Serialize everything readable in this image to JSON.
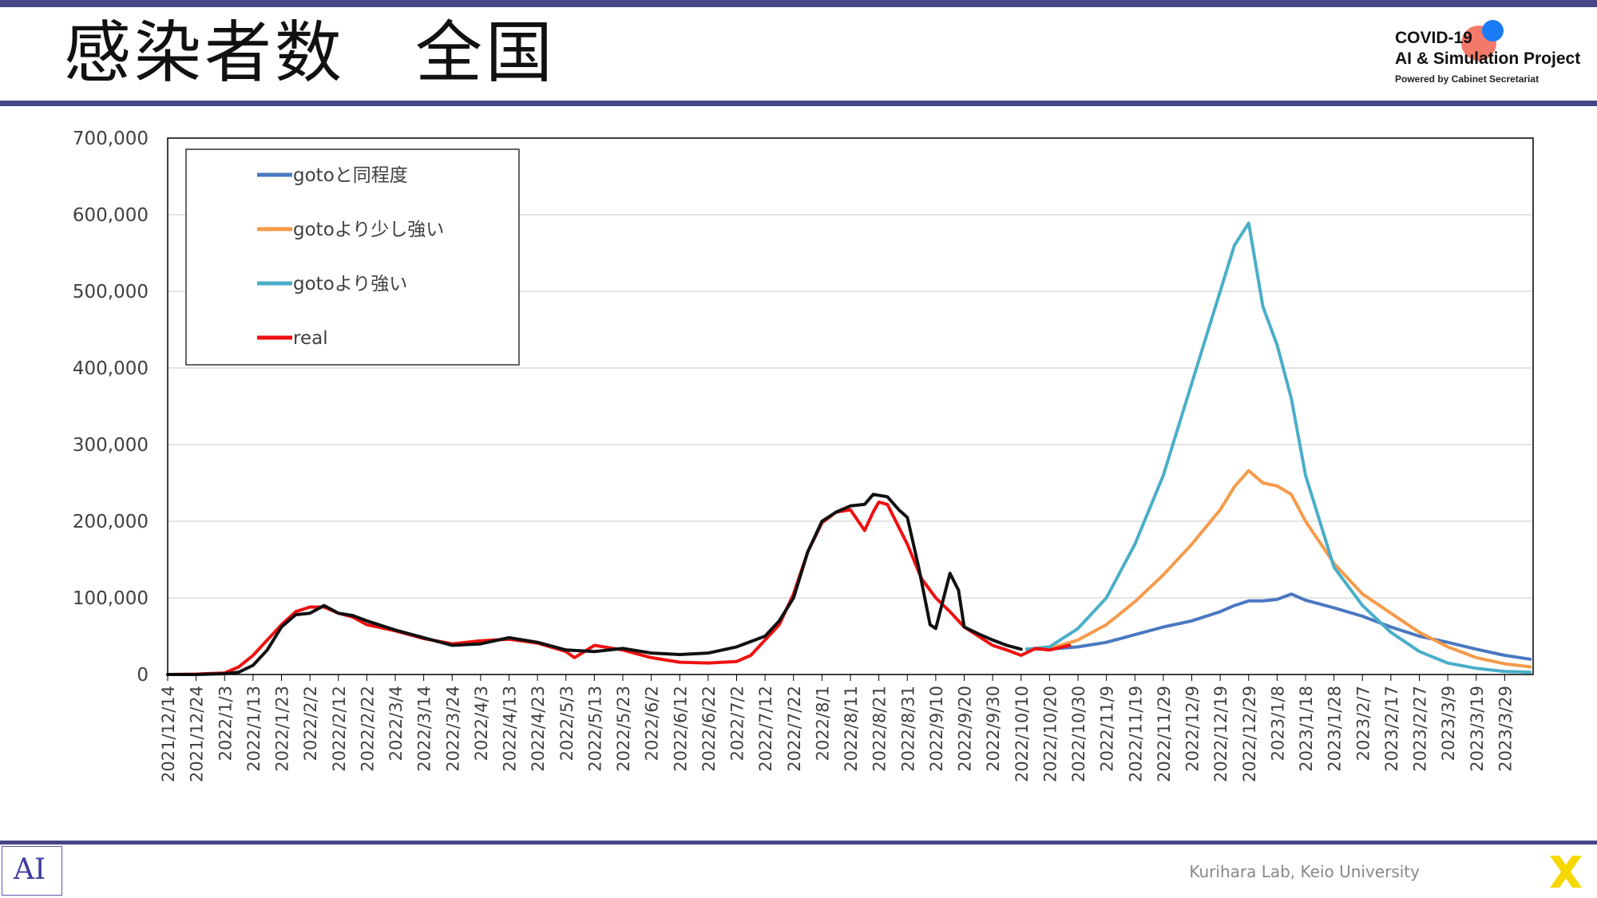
{
  "slide": {
    "title": "感染者数　全国",
    "logo_line1": "COVID-19",
    "logo_line2": "AI & Simulation Project",
    "logo_line3": "Powered by Cabinet Secretariat",
    "lab_logo_text": "AI",
    "credit": "Kurihara Lab, Keio University"
  },
  "colors": {
    "bar": "#474787",
    "same_goto": "#4a78c0",
    "slightly_stronger": "#f59a4a",
    "stronger": "#4aaec9",
    "real": "#ee1111",
    "black": "#111111",
    "brand_x": "#f5d800"
  },
  "chart_data": {
    "type": "line",
    "title": "",
    "xlabel": "",
    "ylabel": "",
    "ylim": [
      0,
      700000
    ],
    "y_ticks": [
      "0",
      "100,000",
      "200,000",
      "300,000",
      "400,000",
      "500,000",
      "600,000",
      "700,000"
    ],
    "x_ticks": [
      "2021/12/14",
      "2021/12/24",
      "2022/1/3",
      "2022/1/13",
      "2022/1/23",
      "2022/2/2",
      "2022/2/12",
      "2022/2/22",
      "2022/3/4",
      "2022/3/14",
      "2022/3/24",
      "2022/4/3",
      "2022/4/13",
      "2022/4/23",
      "2022/5/3",
      "2022/5/13",
      "2022/5/23",
      "2022/6/2",
      "2022/6/12",
      "2022/6/22",
      "2022/7/2",
      "2022/7/12",
      "2022/7/22",
      "2022/8/1",
      "2022/8/11",
      "2022/8/21",
      "2022/8/31",
      "2022/9/10",
      "2022/9/20",
      "2022/9/30",
      "2022/10/10",
      "2022/10/20",
      "2022/10/30",
      "2022/11/9",
      "2022/11/19",
      "2022/11/29",
      "2022/12/9",
      "2022/12/19",
      "2022/12/29",
      "2023/1/8",
      "2023/1/18",
      "2023/1/28",
      "2023/2/7",
      "2023/2/17",
      "2023/2/27",
      "2023/3/9",
      "2023/3/19",
      "2023/3/29"
    ],
    "legend_position": "top-left",
    "grid": true,
    "series": [
      {
        "name": "gotoと同程度",
        "color": "#4a78c0",
        "points": [
          [
            "2022/10/12",
            33000
          ],
          [
            "2022/10/20",
            33000
          ],
          [
            "2022/10/30",
            36000
          ],
          [
            "2022/11/9",
            42000
          ],
          [
            "2022/11/19",
            52000
          ],
          [
            "2022/11/29",
            62000
          ],
          [
            "2022/12/9",
            70000
          ],
          [
            "2022/12/19",
            82000
          ],
          [
            "2022/12/24",
            90000
          ],
          [
            "2022/12/29",
            96000
          ],
          [
            "2023/1/3",
            96000
          ],
          [
            "2023/1/8",
            98000
          ],
          [
            "2023/1/13",
            105000
          ],
          [
            "2023/1/18",
            97000
          ],
          [
            "2023/1/28",
            87000
          ],
          [
            "2023/2/7",
            76000
          ],
          [
            "2023/2/17",
            62000
          ],
          [
            "2023/2/27",
            50000
          ],
          [
            "2023/3/9",
            42000
          ],
          [
            "2023/3/19",
            33000
          ],
          [
            "2023/3/29",
            25000
          ],
          [
            "2023/4/7",
            20000
          ]
        ]
      },
      {
        "name": "gotoより少し強い",
        "color": "#f59a4a",
        "points": [
          [
            "2022/10/12",
            33000
          ],
          [
            "2022/10/20",
            34000
          ],
          [
            "2022/10/30",
            45000
          ],
          [
            "2022/11/9",
            65000
          ],
          [
            "2022/11/19",
            95000
          ],
          [
            "2022/11/29",
            130000
          ],
          [
            "2022/12/9",
            170000
          ],
          [
            "2022/12/19",
            215000
          ],
          [
            "2022/12/24",
            245000
          ],
          [
            "2022/12/29",
            266000
          ],
          [
            "2023/1/3",
            250000
          ],
          [
            "2023/1/8",
            246000
          ],
          [
            "2023/1/13",
            235000
          ],
          [
            "2023/1/18",
            200000
          ],
          [
            "2023/1/28",
            145000
          ],
          [
            "2023/2/7",
            105000
          ],
          [
            "2023/2/17",
            80000
          ],
          [
            "2023/2/27",
            55000
          ],
          [
            "2023/3/9",
            36000
          ],
          [
            "2023/3/19",
            22000
          ],
          [
            "2023/3/29",
            14000
          ],
          [
            "2023/4/7",
            10000
          ]
        ]
      },
      {
        "name": "gotoより強い",
        "color": "#4aaec9",
        "points": [
          [
            "2022/10/12",
            33000
          ],
          [
            "2022/10/20",
            36000
          ],
          [
            "2022/10/30",
            60000
          ],
          [
            "2022/11/9",
            100000
          ],
          [
            "2022/11/19",
            170000
          ],
          [
            "2022/11/29",
            260000
          ],
          [
            "2022/12/9",
            380000
          ],
          [
            "2022/12/19",
            500000
          ],
          [
            "2022/12/24",
            560000
          ],
          [
            "2022/12/29",
            589000
          ],
          [
            "2023/1/3",
            480000
          ],
          [
            "2023/1/8",
            430000
          ],
          [
            "2023/1/13",
            360000
          ],
          [
            "2023/1/18",
            260000
          ],
          [
            "2023/1/28",
            140000
          ],
          [
            "2023/2/7",
            90000
          ],
          [
            "2023/2/17",
            55000
          ],
          [
            "2023/2/27",
            30000
          ],
          [
            "2023/3/9",
            15000
          ],
          [
            "2023/3/19",
            8000
          ],
          [
            "2023/3/29",
            4000
          ],
          [
            "2023/4/7",
            3000
          ]
        ]
      },
      {
        "name": "real",
        "color": "#ee1111",
        "points": [
          [
            "2021/12/14",
            0
          ],
          [
            "2021/12/24",
            500
          ],
          [
            "2022/1/3",
            2000
          ],
          [
            "2022/1/8",
            10000
          ],
          [
            "2022/1/13",
            25000
          ],
          [
            "2022/1/18",
            45000
          ],
          [
            "2022/1/23",
            65000
          ],
          [
            "2022/1/28",
            82000
          ],
          [
            "2022/2/2",
            88000
          ],
          [
            "2022/2/7",
            88000
          ],
          [
            "2022/2/12",
            80000
          ],
          [
            "2022/2/17",
            75000
          ],
          [
            "2022/2/22",
            65000
          ],
          [
            "2022/3/4",
            57000
          ],
          [
            "2022/3/14",
            47000
          ],
          [
            "2022/3/24",
            40000
          ],
          [
            "2022/4/3",
            44000
          ],
          [
            "2022/4/13",
            46000
          ],
          [
            "2022/4/23",
            41000
          ],
          [
            "2022/5/3",
            30000
          ],
          [
            "2022/5/6",
            22000
          ],
          [
            "2022/5/13",
            38000
          ],
          [
            "2022/5/23",
            32000
          ],
          [
            "2022/6/2",
            22000
          ],
          [
            "2022/6/12",
            16000
          ],
          [
            "2022/6/22",
            15000
          ],
          [
            "2022/7/2",
            17000
          ],
          [
            "2022/7/7",
            25000
          ],
          [
            "2022/7/12",
            45000
          ],
          [
            "2022/7/17",
            65000
          ],
          [
            "2022/7/22",
            105000
          ],
          [
            "2022/7/27",
            160000
          ],
          [
            "2022/8/1",
            198000
          ],
          [
            "2022/8/6",
            212000
          ],
          [
            "2022/8/11",
            215000
          ],
          [
            "2022/8/16",
            188000
          ],
          [
            "2022/8/19",
            212000
          ],
          [
            "2022/8/21",
            225000
          ],
          [
            "2022/8/24",
            222000
          ],
          [
            "2022/8/31",
            170000
          ],
          [
            "2022/9/5",
            125000
          ],
          [
            "2022/9/10",
            100000
          ],
          [
            "2022/9/15",
            82000
          ],
          [
            "2022/9/20",
            62000
          ],
          [
            "2022/9/25",
            50000
          ],
          [
            "2022/9/30",
            38000
          ],
          [
            "2022/10/5",
            32000
          ],
          [
            "2022/10/10",
            25000
          ],
          [
            "2022/10/15",
            34000
          ],
          [
            "2022/10/20",
            32000
          ],
          [
            "2022/10/27",
            38000
          ]
        ]
      },
      {
        "color": "#111111",
        "points": [
          [
            "2021/12/14",
            0
          ],
          [
            "2021/12/24",
            0
          ],
          [
            "2022/1/3",
            1000
          ],
          [
            "2022/1/8",
            3000
          ],
          [
            "2022/1/13",
            12000
          ],
          [
            "2022/1/18",
            32000
          ],
          [
            "2022/1/23",
            62000
          ],
          [
            "2022/1/28",
            78000
          ],
          [
            "2022/2/2",
            80000
          ],
          [
            "2022/2/7",
            90000
          ],
          [
            "2022/2/12",
            80000
          ],
          [
            "2022/2/17",
            77000
          ],
          [
            "2022/2/22",
            70000
          ],
          [
            "2022/3/4",
            58000
          ],
          [
            "2022/3/14",
            48000
          ],
          [
            "2022/3/24",
            38000
          ],
          [
            "2022/4/3",
            40000
          ],
          [
            "2022/4/13",
            48000
          ],
          [
            "2022/4/23",
            42000
          ],
          [
            "2022/5/3",
            32000
          ],
          [
            "2022/5/13",
            30000
          ],
          [
            "2022/5/23",
            34000
          ],
          [
            "2022/6/2",
            28000
          ],
          [
            "2022/6/12",
            26000
          ],
          [
            "2022/6/22",
            28000
          ],
          [
            "2022/7/2",
            36000
          ],
          [
            "2022/7/12",
            50000
          ],
          [
            "2022/7/17",
            70000
          ],
          [
            "2022/7/22",
            100000
          ],
          [
            "2022/7/27",
            160000
          ],
          [
            "2022/8/1",
            200000
          ],
          [
            "2022/8/6",
            212000
          ],
          [
            "2022/8/11",
            220000
          ],
          [
            "2022/8/16",
            222000
          ],
          [
            "2022/8/19",
            235000
          ],
          [
            "2022/8/24",
            232000
          ],
          [
            "2022/8/28",
            215000
          ],
          [
            "2022/8/31",
            205000
          ],
          [
            "2022/9/4",
            140000
          ],
          [
            "2022/9/8",
            65000
          ],
          [
            "2022/9/10",
            60000
          ],
          [
            "2022/9/15",
            132000
          ],
          [
            "2022/9/18",
            110000
          ],
          [
            "2022/9/20",
            62000
          ],
          [
            "2022/9/25",
            53000
          ],
          [
            "2022/9/30",
            45000
          ],
          [
            "2022/10/5",
            38000
          ],
          [
            "2022/10/10",
            33000
          ]
        ]
      }
    ]
  }
}
